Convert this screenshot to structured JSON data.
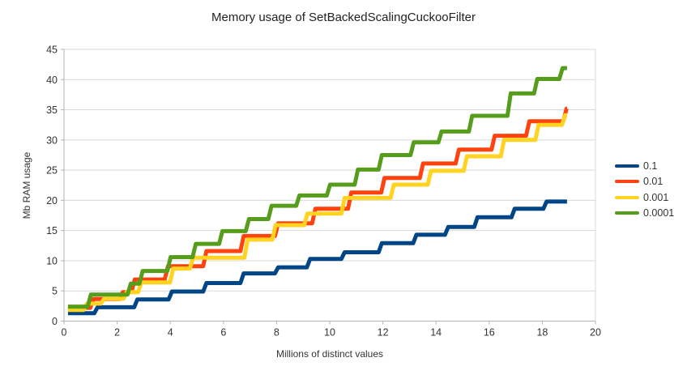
{
  "chart_data": {
    "type": "line",
    "title": "Memory usage of SetBackedScalingCuckooFilter",
    "xlabel": "Millions of distinct values",
    "ylabel": "Mb RAM usage",
    "xlim": [
      0,
      20
    ],
    "ylim": [
      0,
      45
    ],
    "xticks": [
      0,
      2,
      4,
      6,
      8,
      10,
      12,
      14,
      16,
      18,
      20
    ],
    "yticks": [
      0,
      5,
      10,
      15,
      20,
      25,
      30,
      35,
      40,
      45
    ],
    "grid": "horizontal",
    "legend_position": "right",
    "x_start": 0.15,
    "x_end": 18.93,
    "series": [
      {
        "name": "0.1",
        "color": "#004586",
        "start": 1.3,
        "steps": [
          [
            1.2,
            2.3
          ],
          [
            2.7,
            3.6
          ],
          [
            4.0,
            4.9
          ],
          [
            5.3,
            6.3
          ],
          [
            6.7,
            7.9
          ],
          [
            8.0,
            8.9
          ],
          [
            9.2,
            10.3
          ],
          [
            10.5,
            11.4
          ],
          [
            11.9,
            12.9
          ],
          [
            13.2,
            14.3
          ],
          [
            14.4,
            15.6
          ],
          [
            15.5,
            17.2
          ],
          [
            16.9,
            18.6
          ],
          [
            18.1,
            19.8
          ]
        ]
      },
      {
        "name": "0.01",
        "color": "#ff420e",
        "start": 2.2,
        "steps": [
          [
            1.05,
            3.65
          ],
          [
            2.15,
            4.8
          ],
          [
            2.6,
            6.9
          ],
          [
            3.85,
            9.1
          ],
          [
            5.3,
            11.6
          ],
          [
            6.7,
            14.1
          ],
          [
            8.0,
            16.2
          ],
          [
            9.4,
            18.6
          ],
          [
            10.75,
            21.3
          ],
          [
            12.0,
            23.7
          ],
          [
            13.45,
            26.1
          ],
          [
            14.8,
            28.4
          ],
          [
            16.15,
            30.7
          ],
          [
            17.45,
            33.1
          ],
          [
            18.85,
            35.2
          ]
        ]
      },
      {
        "name": "0.001",
        "color": "#ffd320",
        "start": 1.85,
        "steps": [
          [
            0.8,
            2.9
          ],
          [
            1.45,
            3.7
          ],
          [
            2.3,
            4.8
          ],
          [
            2.85,
            6.4
          ],
          [
            4.05,
            8.7
          ],
          [
            4.8,
            10.5
          ],
          [
            6.85,
            13.5
          ],
          [
            7.9,
            15.9
          ],
          [
            9.1,
            17.8
          ],
          [
            10.5,
            20.4
          ],
          [
            12.35,
            22.6
          ],
          [
            13.75,
            24.9
          ],
          [
            15.1,
            27.3
          ],
          [
            16.5,
            30.0
          ],
          [
            17.8,
            32.5
          ],
          [
            18.8,
            34.1
          ]
        ]
      },
      {
        "name": "0.0001",
        "color": "#579d1c",
        "start": 2.4,
        "steps": [
          [
            0.95,
            4.4
          ],
          [
            2.45,
            6.2
          ],
          [
            2.9,
            8.3
          ],
          [
            3.95,
            10.6
          ],
          [
            4.9,
            12.8
          ],
          [
            5.9,
            14.9
          ],
          [
            6.9,
            16.9
          ],
          [
            7.75,
            19.1
          ],
          [
            8.8,
            20.8
          ],
          [
            9.95,
            22.6
          ],
          [
            11.0,
            25.1
          ],
          [
            11.9,
            27.5
          ],
          [
            13.1,
            29.6
          ],
          [
            14.15,
            31.4
          ],
          [
            15.3,
            34.0
          ],
          [
            16.75,
            37.7
          ],
          [
            17.75,
            40.1
          ],
          [
            18.7,
            41.9
          ]
        ]
      }
    ],
    "colors": {
      "grid": "#d9d9d9",
      "axis": "#b3b3b3",
      "text": "#333333",
      "background": "#ffffff"
    }
  }
}
